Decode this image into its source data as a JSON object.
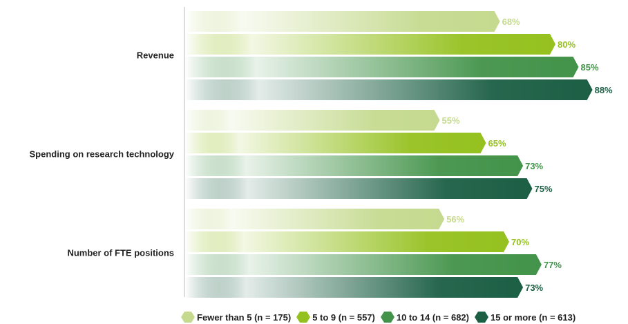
{
  "chart_data": {
    "type": "bar",
    "orientation": "horizontal",
    "categories": [
      "Revenue",
      "Spending on research technology",
      "Number of FTE positions"
    ],
    "series": [
      {
        "name": "Fewer than 5 (n = 175)",
        "values": [
          68,
          55,
          56
        ],
        "color": "#c5da8f"
      },
      {
        "name": "5 to 9 (n = 557)",
        "values": [
          80,
          65,
          70
        ],
        "color": "#95c11f"
      },
      {
        "name": "10 to 14 (n = 682)",
        "values": [
          85,
          73,
          77
        ],
        "color": "#43934a"
      },
      {
        "name": "15 or more (n = 613)",
        "values": [
          88,
          75,
          73
        ],
        "color": "#1c5f45"
      }
    ],
    "value_suffix": "%",
    "xlim": [
      0,
      100
    ],
    "grid": false,
    "legend_position": "bottom"
  }
}
